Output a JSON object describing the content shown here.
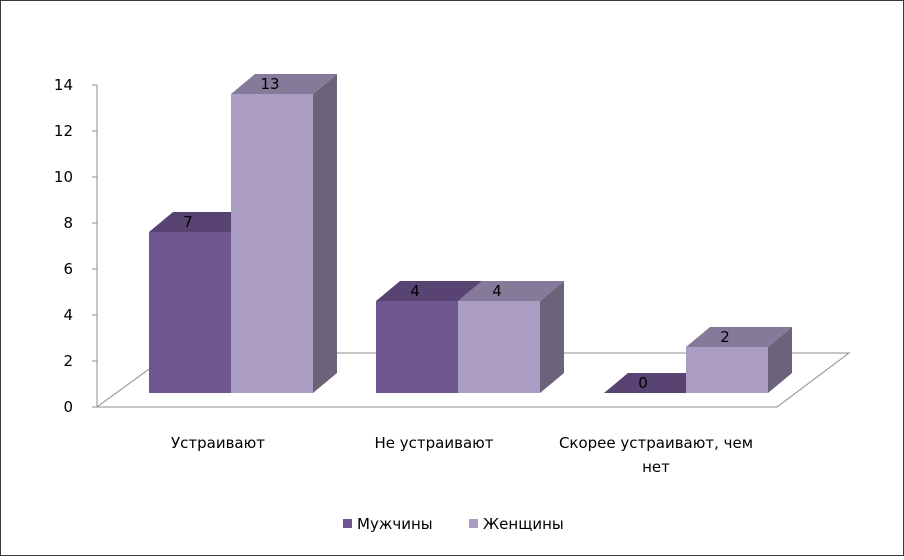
{
  "chart_data": {
    "type": "bar",
    "style": "3d-clustered-column",
    "categories": [
      "Устраивают",
      "Не устраивают",
      "Скорее устраивают, чем нет"
    ],
    "series": [
      {
        "name": "Мужчины",
        "values": [
          7,
          4,
          0
        ],
        "color": "#6f568f",
        "color_top": "#594373",
        "color_side": "#4e3b65"
      },
      {
        "name": "Женщины",
        "values": [
          13,
          4,
          2
        ],
        "color": "#aa9cc2",
        "color_top": "#857a9a",
        "color_side": "#6c6279"
      }
    ],
    "yticks": [
      "0",
      "2",
      "4",
      "6",
      "8",
      "10",
      "12",
      "14"
    ],
    "ylim": [
      0,
      14
    ],
    "grid": false,
    "legend_position": "bottom",
    "data_labels": true,
    "title": "",
    "xlabel": "",
    "ylabel": ""
  }
}
